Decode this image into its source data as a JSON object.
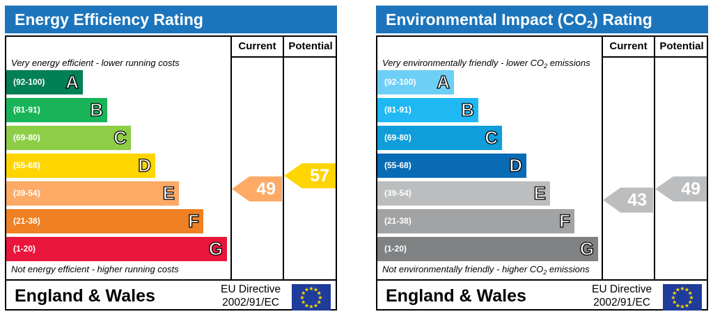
{
  "chart_data": [
    {
      "type": "bar",
      "title": "Energy Efficiency Rating",
      "column_headers": [
        "Current",
        "Potential"
      ],
      "top_caption": "Very energy efficient - lower running costs",
      "bottom_caption": "Not energy efficient - higher running costs",
      "categories": [
        "A",
        "B",
        "C",
        "D",
        "E",
        "F",
        "G"
      ],
      "ranges": [
        "(92-100)",
        "(81-91)",
        "(69-80)",
        "(55-68)",
        "(39-54)",
        "(21-38)",
        "(1-20)"
      ],
      "band_colors": [
        "#008054",
        "#19b459",
        "#8dce46",
        "#ffd500",
        "#fcaa65",
        "#ef8023",
        "#e9153b"
      ],
      "current": {
        "value": 49,
        "band": "E",
        "color": "#fcaa65"
      },
      "potential": {
        "value": 57,
        "band": "D",
        "color": "#ffd500"
      },
      "region": "England & Wales",
      "directive_line1": "EU Directive",
      "directive_line2": "2002/91/EC"
    },
    {
      "type": "bar",
      "title": "Environmental Impact (CO2) Rating",
      "title_parts": {
        "pre": "Environmental Impact (CO",
        "sub": "2",
        "post": ") Rating"
      },
      "column_headers": [
        "Current",
        "Potential"
      ],
      "top_caption": "Very environmentally friendly - lower CO2 emissions",
      "top_caption_parts": {
        "pre": "Very environmentally friendly - lower CO",
        "sub": "2",
        "post": " emissions"
      },
      "bottom_caption": "Not environmentally friendly - higher CO2 emissions",
      "bottom_caption_parts": {
        "pre": "Not environmentally friendly - higher CO",
        "sub": "2",
        "post": " emissions"
      },
      "categories": [
        "A",
        "B",
        "C",
        "D",
        "E",
        "F",
        "G"
      ],
      "ranges": [
        "(92-100)",
        "(81-91)",
        "(69-80)",
        "(55-68)",
        "(39-54)",
        "(21-38)",
        "(1-20)"
      ],
      "band_colors": [
        "#6ecff6",
        "#20b8f2",
        "#0f9ed9",
        "#0a6bb5",
        "#bbbdbf",
        "#a2a3a5",
        "#7f8183"
      ],
      "current": {
        "value": 43,
        "band": "E",
        "color": "#bbbdbf"
      },
      "potential": {
        "value": 49,
        "band": "E",
        "color": "#bbbdbf"
      },
      "region": "England & Wales",
      "directive_line1": "EU Directive",
      "directive_line2": "2002/91/EC"
    }
  ]
}
